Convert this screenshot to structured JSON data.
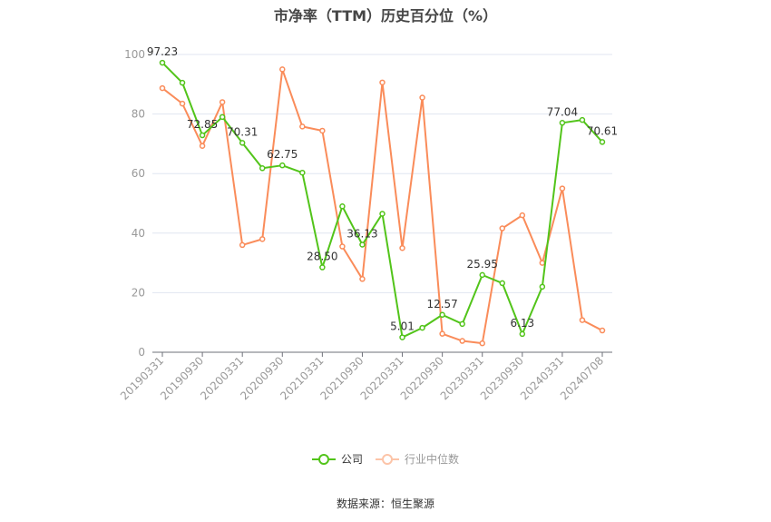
{
  "title": "市净率（TTM）历史百分位（%）",
  "legend": {
    "company": "公司",
    "industry": "行业中位数"
  },
  "source": "数据来源：恒生聚源",
  "colors": {
    "company": "#52c41a",
    "industry": "#fa8c5a",
    "grid": "#e0e6f1",
    "axis": "#6e7079",
    "tick_label": "#999999"
  },
  "chart_data": {
    "type": "line",
    "title": "市净率（TTM）历史百分位（%）",
    "xlabel": "",
    "ylabel": "",
    "ylim": [
      0,
      100
    ],
    "yticks": [
      0,
      20,
      40,
      60,
      80,
      100
    ],
    "grid": true,
    "legend_position": "bottom",
    "x_tick_labels": [
      "20190331",
      "20190930",
      "20200331",
      "20200930",
      "20210331",
      "20210930",
      "20220331",
      "20220930",
      "20230331",
      "20230930",
      "20240331",
      "20240708"
    ],
    "x": [
      "20190331",
      "20190630",
      "20190930",
      "20191231",
      "20200331",
      "20200630",
      "20200930",
      "20201231",
      "20210331",
      "20210630",
      "20210930",
      "20211231",
      "20220331",
      "20220630",
      "20220930",
      "20221231",
      "20230331",
      "20230630",
      "20230930",
      "20231231",
      "20240331",
      "20240630",
      "20240708"
    ],
    "series": [
      {
        "name": "公司",
        "values": [
          97.23,
          90.5,
          72.85,
          79.0,
          70.31,
          61.8,
          62.75,
          60.3,
          28.5,
          49.0,
          36.13,
          46.5,
          5.01,
          8.2,
          12.57,
          9.5,
          25.95,
          23.2,
          6.13,
          22.0,
          77.04,
          78.0,
          70.61
        ],
        "labeled_points": {
          "0": "97.23",
          "2": "72.85",
          "4": "70.31",
          "6": "62.75",
          "8": "28.50",
          "10": "36.13",
          "12": "5.01",
          "14": "12.57",
          "16": "25.95",
          "18": "6.13",
          "20": "77.04",
          "22": "70.61"
        }
      },
      {
        "name": "行业中位数",
        "values": [
          88.7,
          83.5,
          69.3,
          84.0,
          36.0,
          38.0,
          95.0,
          75.8,
          74.4,
          35.5,
          24.6,
          90.6,
          35.0,
          85.5,
          6.2,
          3.8,
          3.0,
          41.6,
          46.0,
          30.0,
          55.0,
          10.8,
          7.3
        ]
      }
    ]
  }
}
